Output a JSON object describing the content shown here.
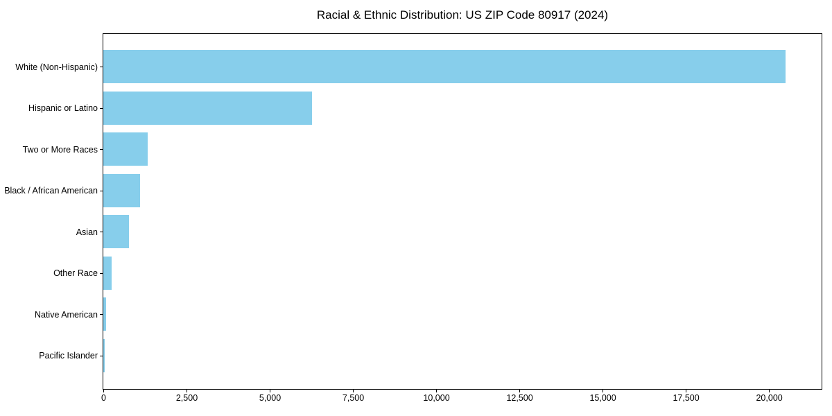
{
  "chart_data": {
    "type": "bar",
    "orientation": "horizontal",
    "title": "Racial & Ethnic Distribution: US ZIP Code 80917 (2024)",
    "categories": [
      "White (Non-Hispanic)",
      "Hispanic or Latino",
      "Two or More Races",
      "Black / African American",
      "Asian",
      "Other Race",
      "Native American",
      "Pacific Islander"
    ],
    "values": [
      20500,
      6280,
      1330,
      1110,
      770,
      240,
      80,
      50
    ],
    "xlabel": "",
    "ylabel": "",
    "xlim": [
      0,
      21560
    ],
    "xticks": [
      0,
      2500,
      5000,
      7500,
      10000,
      12500,
      15000,
      17500,
      20000
    ],
    "bar_color": "#87CEEB",
    "spine_color": "#000000",
    "text_color": "#000000",
    "grid": false,
    "legend": "none"
  }
}
